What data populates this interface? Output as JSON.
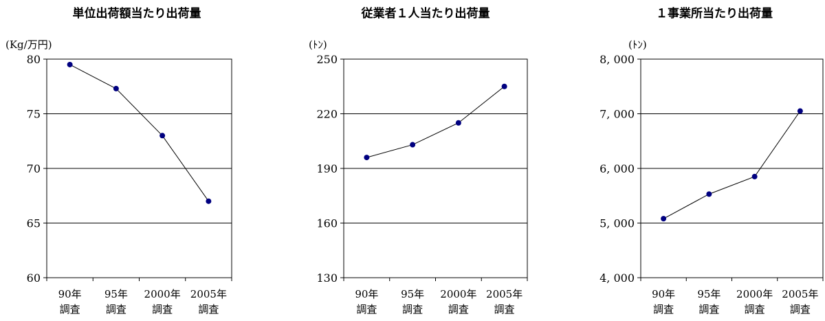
{
  "chart_data": [
    {
      "type": "line",
      "title": "単位出荷額当たり出荷量",
      "ylabel": "(Kg/万円)",
      "categories": [
        [
          "90年",
          "調査"
        ],
        [
          "95年",
          "調査"
        ],
        [
          "2000年",
          "調査"
        ],
        [
          "2005年",
          "調査"
        ]
      ],
      "values": [
        79.5,
        77.3,
        73.0,
        67.0
      ],
      "ylim": [
        60,
        80
      ],
      "yticks": [
        "60",
        "65",
        "70",
        "75",
        "80"
      ],
      "ytick_values": [
        60,
        65,
        70,
        75,
        80
      ],
      "grid": true,
      "line_color": "#000000",
      "marker_color": "#000080"
    },
    {
      "type": "line",
      "title": "従業者１人当たり出荷量",
      "ylabel": "(ﾄﾝ)",
      "categories": [
        [
          "90年",
          "調査"
        ],
        [
          "95年",
          "調査"
        ],
        [
          "2000年",
          "調査"
        ],
        [
          "2005年",
          "調査"
        ]
      ],
      "values": [
        196,
        203,
        215,
        235
      ],
      "ylim": [
        130,
        250
      ],
      "yticks": [
        "130",
        "160",
        "190",
        "220",
        "250"
      ],
      "ytick_values": [
        130,
        160,
        190,
        220,
        250
      ],
      "grid": true,
      "line_color": "#000000",
      "marker_color": "#000080"
    },
    {
      "type": "line",
      "title": "１事業所当たり出荷量",
      "ylabel": "(ﾄﾝ)",
      "categories": [
        [
          "90年",
          "調査"
        ],
        [
          "95年",
          "調査"
        ],
        [
          "2000年",
          "調査"
        ],
        [
          "2005年",
          "調査"
        ]
      ],
      "values": [
        5080,
        5530,
        5850,
        7050
      ],
      "ylim": [
        4000,
        8000
      ],
      "yticks": [
        "4, 000",
        "5, 000",
        "6, 000",
        "7, 000",
        "8, 000"
      ],
      "ytick_values": [
        4000,
        5000,
        6000,
        7000,
        8000
      ],
      "grid": true,
      "line_color": "#000000",
      "marker_color": "#000080"
    }
  ]
}
